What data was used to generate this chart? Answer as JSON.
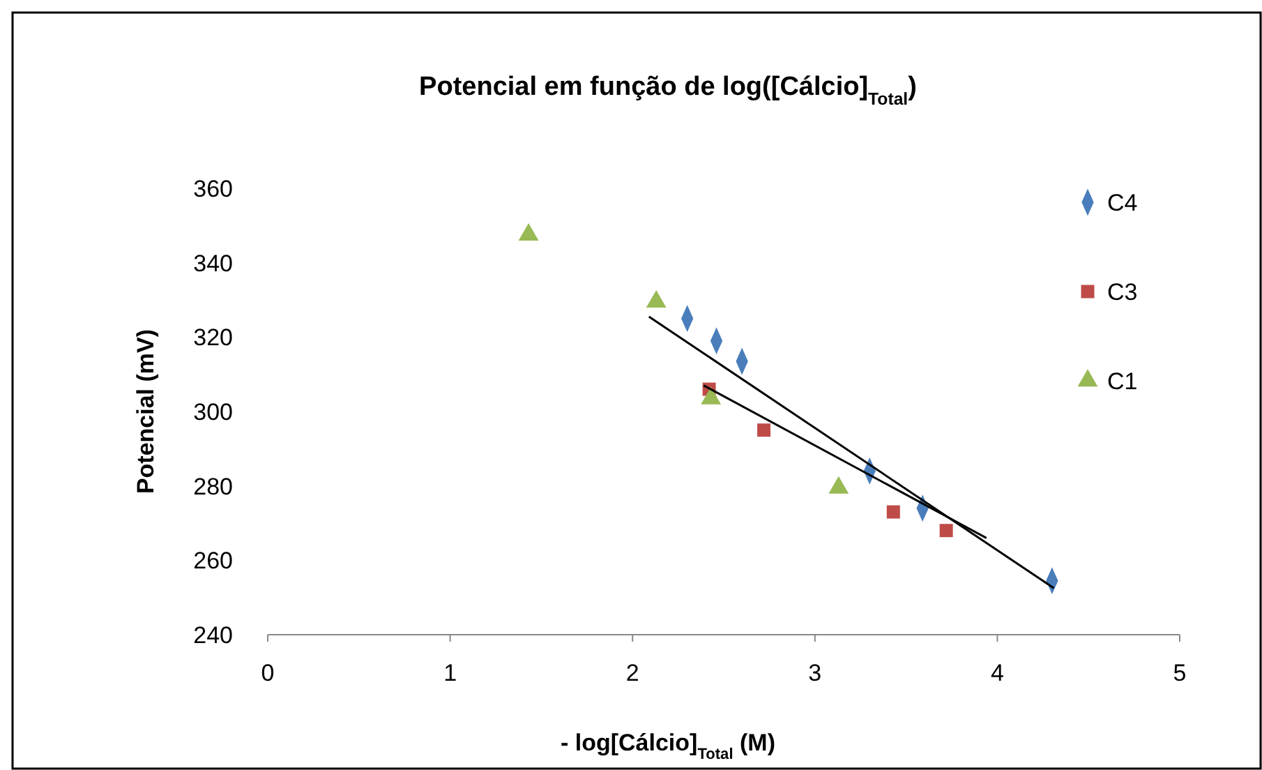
{
  "chart_data": {
    "type": "scatter",
    "title": "Potencial em função de log([Cálcio]$_{Total}$)",
    "xlabel": "- log[Cálcio]$_{Total}$ (M)",
    "ylabel": "Potencial (mV)",
    "xlim": [
      0,
      5
    ],
    "xticks": [
      0,
      1,
      2,
      3,
      4,
      5
    ],
    "ylim": [
      240,
      360
    ],
    "yticks": [
      240,
      260,
      280,
      300,
      320,
      340,
      360
    ],
    "grid": false,
    "legend": "right",
    "series": [
      {
        "name": "C4",
        "color": "#4a7ebb",
        "marker": "diamond",
        "x": [
          2.3,
          2.46,
          2.6,
          3.3,
          3.59,
          4.3
        ],
        "values": [
          325,
          319,
          313.5,
          284,
          274,
          254.5
        ]
      },
      {
        "name": "C3",
        "color": "#be4b48",
        "marker": "square",
        "x": [
          2.42,
          2.72,
          3.43,
          3.72
        ],
        "values": [
          306,
          295,
          273,
          268
        ]
      },
      {
        "name": "C1",
        "color": "#98b954",
        "marker": "triangle",
        "x": [
          1.43,
          2.13,
          2.43,
          3.13
        ],
        "values": [
          347.5,
          329.5,
          303.5,
          279.5
        ]
      },
      {
        "type": "line",
        "color": "#000000",
        "marker": "none",
        "x": [
          2.09,
          4.31
        ],
        "values": [
          325.5,
          252.5
        ]
      },
      {
        "type": "line",
        "color": "#000000",
        "marker": "none",
        "x": [
          2.39,
          3.94
        ],
        "values": [
          307,
          266
        ]
      }
    ]
  }
}
